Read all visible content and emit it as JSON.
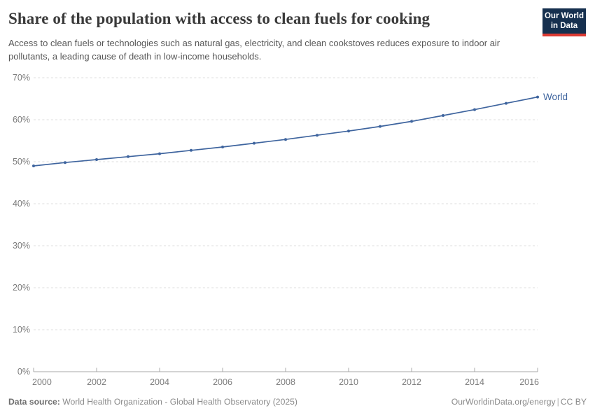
{
  "header": {
    "title": "Share of the population with access to clean fuels for cooking",
    "subtitle": "Access to clean fuels or technologies such as natural gas, electricity, and clean cookstoves reduces exposure to indoor air pollutants, a leading cause of death in low-income households.",
    "logo": {
      "line1": "Our World",
      "line2": "in Data",
      "bg_color": "#16304f",
      "bar_color": "#dc3a33"
    }
  },
  "chart_data": {
    "type": "line",
    "title": "Share of the population with access to clean fuels for cooking",
    "xlabel": "",
    "ylabel": "",
    "xlim": [
      2000,
      2016
    ],
    "ylim": [
      0,
      70
    ],
    "x_ticks": [
      2000,
      2002,
      2004,
      2006,
      2008,
      2010,
      2012,
      2014,
      2016
    ],
    "y_ticks": [
      0,
      10,
      20,
      30,
      40,
      50,
      60,
      70
    ],
    "y_tick_suffix": "%",
    "grid": "horizontal-dashed",
    "legend_position": "end-of-line",
    "x": [
      2000,
      2001,
      2002,
      2003,
      2004,
      2005,
      2006,
      2007,
      2008,
      2009,
      2010,
      2011,
      2012,
      2013,
      2014,
      2015,
      2016
    ],
    "series": [
      {
        "name": "World",
        "color": "#3e649e",
        "values": [
          49.0,
          49.8,
          50.5,
          51.2,
          51.9,
          52.7,
          53.5,
          54.4,
          55.3,
          56.3,
          57.3,
          58.4,
          59.6,
          61.0,
          62.4,
          63.9,
          65.4
        ]
      }
    ],
    "axis_color": "#a8a8a8",
    "gridline_color": "#dcdcdc",
    "tick_label_color": "#7c7c7c"
  },
  "footer": {
    "datasource_label": "Data source:",
    "datasource": "World Health Organization - Global Health Observatory (2025)",
    "url": "OurWorldinData.org/energy",
    "separator": "|",
    "license": "CC BY"
  }
}
